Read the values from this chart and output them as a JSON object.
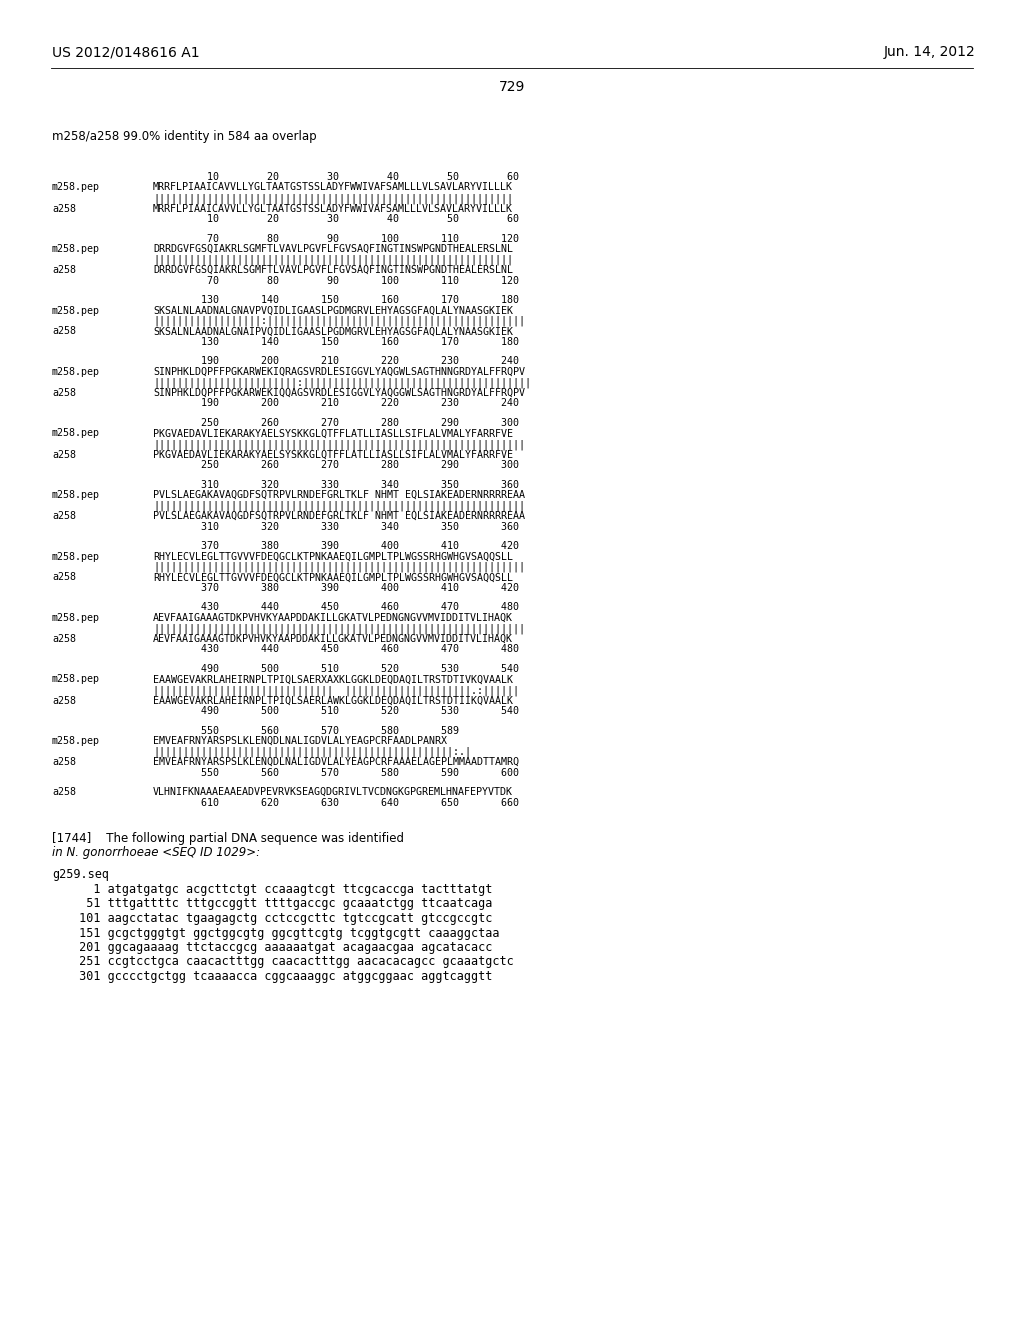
{
  "header_left": "US 2012/0148616 A1",
  "header_right": "Jun. 14, 2012",
  "page_number": "729",
  "subtitle": "m258/a258 99.0% identity in 584 aa overlap",
  "background_color": "#ffffff",
  "sequence_blocks": [
    {
      "nums_top": "         10        20        30        40        50        60",
      "label1": "m258.pep",
      "seq1": "MRRFLPIAAICAVVLLYGLTAATGSTSSLADYFWWIVAFSAMLLLVLSAVLARYVILLLK",
      "bars": "||||||||||||||||||||||||||||||||||||||||||||||||||||||||||||",
      "label2": "a258",
      "seq2": "MRRFLPIAAICAVVLLYGLTAATGSTSSLADYFWWIVAFSAMLLLVLSAVLARYVILLLK",
      "nums_bot": "         10        20        30        40        50        60"
    },
    {
      "nums_top": "         70        80        90       100       110       120",
      "label1": "m258.pep",
      "seq1": "DRRDGVFGSQIAKRLSGMFTLVAVLPGVFLFGVSAQFINGTINSWPGNDTHEALERSLNL",
      "bars": "||||||||||||||||||||||||||||||||||||||||||||||||||||||||||||",
      "label2": "a258",
      "seq2": "DRRDGVFGSQIAKRLSGMFTLVAVLPGVFLFGVSAQFINGTINSWPGNDTHEALERSLNL",
      "nums_bot": "         70        80        90       100       110       120"
    },
    {
      "nums_top": "        130       140       150       160       170       180",
      "label1": "m258.pep",
      "seq1": "SKSALNLAADNALGNAVPVQIDLIGAASLPGDMGRVLEHYAGSGFAQLALYNAASGKIEK",
      "bars": "||||||||||||||||||:|||||||||||||||||||||||||||||||||||||||||||",
      "label2": "a258",
      "seq2": "SKSALNLAADNALGNAIPVQIDLIGAASLPGDMGRVLEHYAGSGFAQLALYNAASGKIEK",
      "nums_bot": "        130       140       150       160       170       180"
    },
    {
      "nums_top": "        190       200       210       220       230       240",
      "label1": "m258.pep",
      "seq1": "SINPHKLDQPFFPGKARWEKIQRAGSVRDLESIGGVLYAQGWLSAGTHNNGRDYALFFRQPV",
      "bars": "||||||||||||||||||||||||:||||||||||||||||||||||||||||||||||||||",
      "label2": "a258",
      "seq2": "SINPHKLDQPFFPGKARWEKIQQAGSVRDLESIGGVLYAQGGWLSAGTHNGRDYALFFRQPV",
      "nums_bot": "        190       200       210       220       230       240"
    },
    {
      "nums_top": "        250       260       270       280       290       300",
      "label1": "m258.pep",
      "seq1": "PKGVAEDAVLIEKARAKYAELSYSKKGLQTFFLATLLIASLLSIFLALVMALYFARRFVE",
      "bars": "||||||||||||||||||||||||||||||||||||||||||||||||||||||||||||||",
      "label2": "a258",
      "seq2": "PKGVAEDAVLIEKARAKYAELSYSKKGLQTFFLATLLIASLLSIFLALVMALYFARRFVE",
      "nums_bot": "        250       260       270       280       290       300"
    },
    {
      "nums_top": "        310       320       330       340       350       360",
      "label1": "m258.pep",
      "seq1": "PVLSLAEGAKAVAQGDFSQTRPVLRNDEFGRLTKLF NHMT EQLSIAKEADERNRRRREAA",
      "bars": "||||||||||||||||||||||||||||||||||||||||||||||||||||||||||||||",
      "label2": "a258",
      "seq2": "PVLSLAEGAKAVAQGDFSQTRPVLRNDEFGRLTKLF NHMT EQLSIAKEADERNRRRREAA",
      "nums_bot": "        310       320       330       340       350       360"
    },
    {
      "nums_top": "        370       380       390       400       410       420",
      "label1": "m258.pep",
      "seq1": "RHYLECVLEGLTTGVVVFDEQGCLKTPNKAAEQILGMPLTPLWGSSRHGWHGVSAQQSLL",
      "bars": "||||||||||||||||||||||||||||||||||||||||||||||||||||||||||||||",
      "label2": "a258",
      "seq2": "RHYLECVLEGLTTGVVVFDEQGCLKTPNKAAEQILGMPLTPLWGSSRHGWHGVSAQQSLL",
      "nums_bot": "        370       380       390       400       410       420"
    },
    {
      "nums_top": "        430       440       450       460       470       480",
      "label1": "m258.pep",
      "seq1": "AEVFAAIGAAAGTDKPVHVKYAAPDDAKILLGKATVLPEDNGNGVVMVIDDITVLIHAQK",
      "bars": "||||||||||||||||||||||||||||||||||||||||||||||||||||||||||||||",
      "label2": "a258",
      "seq2": "AEVFAAIGAAAGTDKPVHVKYAAPDDAKILLGKATVLPEDNGNGVVMVIDDITVLIHAQK",
      "nums_bot": "        430       440       450       460       470       480"
    },
    {
      "nums_top": "        490       500       510       520       530       540",
      "label1": "m258.pep",
      "seq1": "EAAWGEVAKRLAHEIRNPLTPIQLSAERXAXKLGGKLDEQDAQILTRSTDTIVKQVAALK",
      "bars": "||||||||||||||||||||||||||||||  |||||||||||||||||||||.:||||||",
      "label2": "a258",
      "seq2": "EAAWGEVAKRLAHEIRNPLTPIQLSAERLAWKLGGKLDEQDAQILTRSTDTIIKQVAALK",
      "nums_bot": "        490       500       510       520       530       540"
    },
    {
      "nums_top": "        550       560       570       580       589",
      "label1": "m258.pep",
      "seq1": "EMVEAFRNYARSPSLKLENQDLNALIGDVLALYEAGPCRFAADLPANRX",
      "bars": "||||||||||||||||||||||||||||||||||||||||||||||||||:.|",
      "label2": "a258",
      "seq2": "EMVEAFRNYARSPSLKLENQDLNALIGDVLALYEAGPCRFAAAELAGEPLMMAADTTAMRQ",
      "nums_bot": "        550       560       570       580       590       600"
    }
  ],
  "extra_a258_seq": "VLHNIFKNAAAEAAEADVPEVRVKSEAGQDGRIVLTVCDNGKGPGREMLHNAFEPYVTDK",
  "extra_a258_nums": "        610       620       630       640       650       660",
  "paragraph_num": "[1744]",
  "paragraph_italic": "in N. gonorrhoeae <SEQ ID 1029>:",
  "paragraph_normal": "The following partial DNA sequence was identified",
  "dna_label": "g259.seq",
  "dna_lines": [
    "   1 atgatgatgc acgcttctgt ccaaagtcgt ttcgcaccga tactttatgt",
    "  51 tttgattttc tttgccggtt ttttgaccgc gcaaatctgg ttcaatcaga",
    " 101 aagcctatac tgaagagctg cctccgcttc tgtccgcatt gtccgccgtc",
    " 151 gcgctgggtgt ggctggcgtg ggcgttcgtg tcggtgcgtt caaaggctaa",
    " 201 ggcagaaaag ttctaccgcg aaaaaatgat acagaacgaa agcatacacc",
    " 251 ccgtcctgca caacactttgg caacactttgg aacacacagcc gcaaatgctc",
    " 301 gcccctgctgg tcaaaacca cggcaaaggc atggcggaac aggtcaggtt"
  ]
}
